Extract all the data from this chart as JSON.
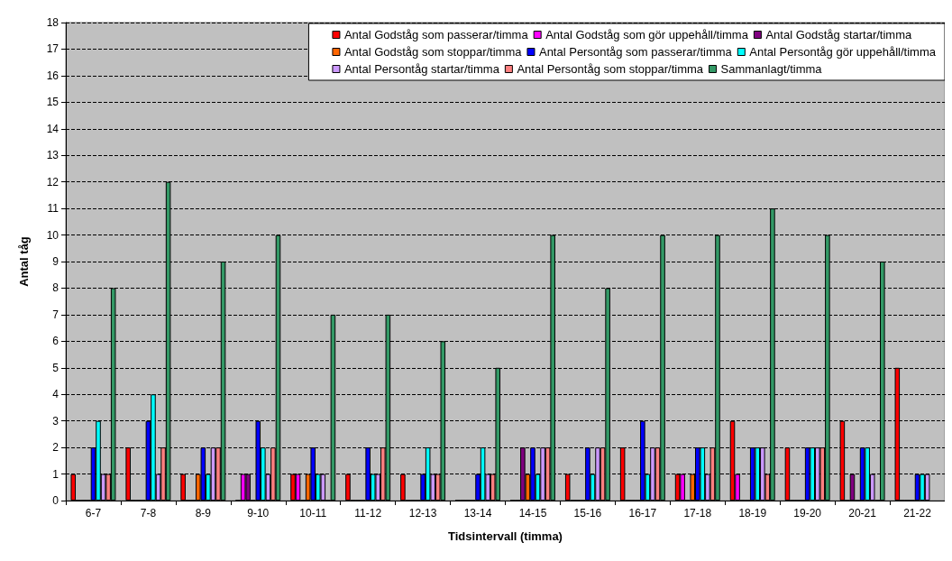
{
  "chart_data": {
    "type": "bar",
    "xlabel": "Tidsintervall (timma)",
    "ylabel": "Antal tåg",
    "categories": [
      "6-7",
      "7-8",
      "8-9",
      "9-10",
      "10-11",
      "11-12",
      "12-13",
      "13-14",
      "14-15",
      "15-16",
      "16-17",
      "17-18",
      "18-19",
      "19-20",
      "20-21",
      "21-22"
    ],
    "series": [
      {
        "name": "Antal Godståg som passerar/timma",
        "color": "#ff0000",
        "values": [
          1,
          2,
          1,
          0,
          1,
          1,
          1,
          0,
          0,
          1,
          2,
          1,
          3,
          2,
          3,
          5
        ]
      },
      {
        "name": "Antal Godståg som gör uppehåll/timma",
        "color": "#ff00ff",
        "values": [
          0,
          0,
          0,
          1,
          1,
          0,
          0,
          0,
          0,
          0,
          0,
          1,
          1,
          0,
          0,
          0
        ]
      },
      {
        "name": "Antal Godståg startar/timma",
        "color": "#800080",
        "values": [
          0,
          0,
          0,
          1,
          0,
          0,
          0,
          0,
          2,
          0,
          0,
          0,
          0,
          0,
          1,
          0
        ]
      },
      {
        "name": "Antal Godståg som stoppar/timma",
        "color": "#ff6600",
        "values": [
          0,
          0,
          1,
          0,
          1,
          0,
          0,
          0,
          1,
          0,
          0,
          1,
          0,
          0,
          0,
          0
        ]
      },
      {
        "name": "Antal Persontåg som passerar/timma",
        "color": "#0000ff",
        "values": [
          2,
          3,
          2,
          3,
          2,
          2,
          1,
          1,
          2,
          2,
          3,
          2,
          2,
          2,
          2,
          1
        ]
      },
      {
        "name": "Antal Persontåg gör uppehåll/timma",
        "color": "#00ffff",
        "values": [
          3,
          4,
          1,
          2,
          1,
          1,
          2,
          2,
          1,
          1,
          1,
          2,
          2,
          2,
          2,
          1
        ]
      },
      {
        "name": "Antal Persontåg startar/timma",
        "color": "#cc99ff",
        "values": [
          1,
          1,
          2,
          1,
          1,
          1,
          1,
          1,
          2,
          2,
          2,
          1,
          2,
          2,
          1,
          1
        ]
      },
      {
        "name": "Antal Persontåg som stoppar/timma",
        "color": "#ff8080",
        "values": [
          1,
          2,
          2,
          2,
          0,
          2,
          1,
          1,
          2,
          2,
          2,
          2,
          1,
          2,
          0,
          null
        ]
      },
      {
        "name": "Sammanlagt/timma",
        "color": "#339966",
        "values": [
          8,
          12,
          9,
          10,
          7,
          7,
          6,
          5,
          10,
          8,
          10,
          10,
          11,
          10,
          9,
          null
        ]
      }
    ],
    "ylim": [
      0,
      18
    ],
    "yticks": [
      0,
      1,
      2,
      3,
      4,
      5,
      6,
      7,
      8,
      9,
      10,
      11,
      12,
      13,
      14,
      15,
      16,
      17,
      18
    ],
    "grid": "y",
    "legend": "top right"
  }
}
